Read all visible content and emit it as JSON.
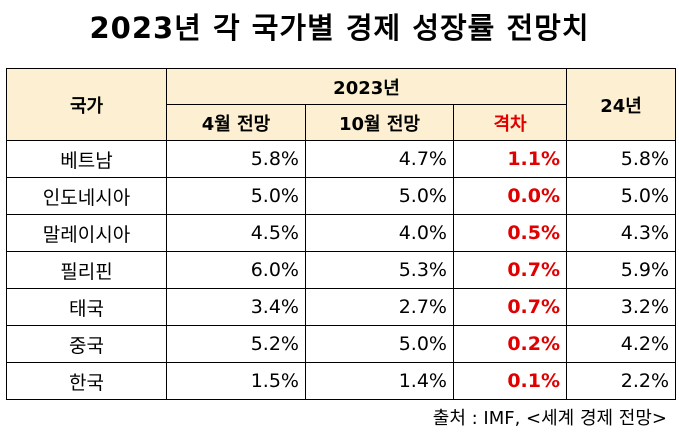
{
  "title": "2023년 각 국가별 경제 성장률 전망치",
  "table": {
    "headers": {
      "country": "국가",
      "year_group": "2023년",
      "april": "4월 전망",
      "october": "10월 전망",
      "gap": "격차",
      "next_year": "24년"
    },
    "rows": [
      {
        "country": "베트남",
        "april": "5.8%",
        "october": "4.7%",
        "gap": "1.1%",
        "next_year": "5.8%"
      },
      {
        "country": "인도네시아",
        "april": "5.0%",
        "october": "5.0%",
        "gap": "0.0%",
        "next_year": "5.0%"
      },
      {
        "country": "말레이시아",
        "april": "4.5%",
        "october": "4.0%",
        "gap": "0.5%",
        "next_year": "4.3%"
      },
      {
        "country": "필리핀",
        "april": "6.0%",
        "october": "5.3%",
        "gap": "0.7%",
        "next_year": "5.9%"
      },
      {
        "country": "태국",
        "april": "3.4%",
        "october": "2.7%",
        "gap": "0.7%",
        "next_year": "3.2%"
      },
      {
        "country": "중국",
        "april": "5.2%",
        "october": "5.0%",
        "gap": "0.2%",
        "next_year": "4.2%"
      },
      {
        "country": "한국",
        "april": "1.5%",
        "october": "1.4%",
        "gap": "0.1%",
        "next_year": "2.2%"
      }
    ]
  },
  "source": "출처 : IMF, <세계 경제 전망>",
  "colors": {
    "header_background": "#fdf0d2",
    "gap_highlight": "#e00000",
    "border": "#000000"
  }
}
